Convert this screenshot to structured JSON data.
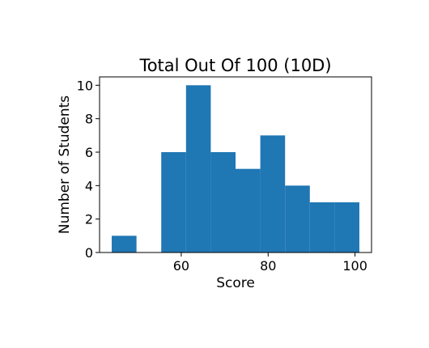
{
  "chart_data": {
    "type": "bar",
    "subtype": "histogram",
    "title": "Total Out Of 100 (10D)",
    "xlabel": "Score",
    "ylabel": "Number of Students",
    "bins": [
      {
        "x0": 44.0,
        "x1": 49.7,
        "count": 1
      },
      {
        "x0": 49.7,
        "x1": 55.4,
        "count": 0
      },
      {
        "x0": 55.4,
        "x1": 61.1,
        "count": 6
      },
      {
        "x0": 61.1,
        "x1": 66.8,
        "count": 10
      },
      {
        "x0": 66.8,
        "x1": 72.5,
        "count": 6
      },
      {
        "x0": 72.5,
        "x1": 78.2,
        "count": 5
      },
      {
        "x0": 78.2,
        "x1": 83.9,
        "count": 7
      },
      {
        "x0": 83.9,
        "x1": 89.6,
        "count": 4
      },
      {
        "x0": 89.6,
        "x1": 95.3,
        "count": 3
      },
      {
        "x0": 95.3,
        "x1": 101.0,
        "count": 3
      }
    ],
    "xlim": [
      41.2,
      103.8
    ],
    "ylim": [
      0,
      10.5
    ],
    "xticks": [
      60,
      80,
      100
    ],
    "yticks": [
      0,
      2,
      4,
      6,
      8,
      10
    ],
    "bar_color": "#1f77b4",
    "grid": false,
    "legend": "none"
  }
}
